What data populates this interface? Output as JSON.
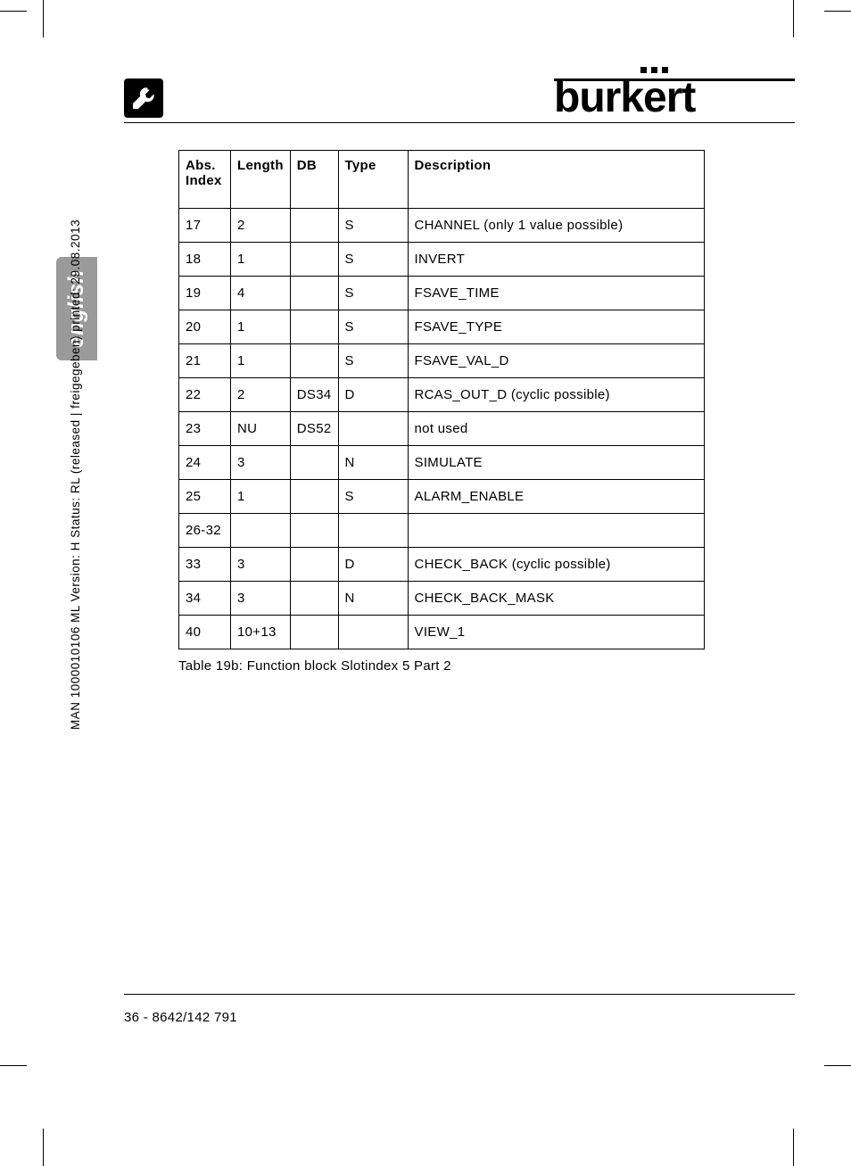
{
  "brand": "burkert",
  "language_tab": "english",
  "vertical_doc_string": "MAN  1000010106  ML  Version: H   Status: RL (released | freigegeben)  printed: 29.08.2013",
  "table": {
    "headers": {
      "abs_index": "Abs. Index",
      "length": "Length",
      "db": "DB",
      "type": "Type",
      "description": "Description"
    },
    "rows": [
      {
        "abs": "17",
        "len": "2",
        "db": "",
        "type": "S",
        "desc": "CHANNEL (only 1 value possible)"
      },
      {
        "abs": "18",
        "len": "1",
        "db": "",
        "type": "S",
        "desc": "INVERT"
      },
      {
        "abs": "19",
        "len": "4",
        "db": "",
        "type": "S",
        "desc": "FSAVE_TIME"
      },
      {
        "abs": "20",
        "len": "1",
        "db": "",
        "type": "S",
        "desc": "FSAVE_TYPE"
      },
      {
        "abs": "21",
        "len": "1",
        "db": "",
        "type": "S",
        "desc": "FSAVE_VAL_D"
      },
      {
        "abs": "22",
        "len": "2",
        "db": "DS34",
        "type": "D",
        "desc": "RCAS_OUT_D (cyclic possible)"
      },
      {
        "abs": "23",
        "len": "NU",
        "db": "DS52",
        "type": "",
        "desc": "not used"
      },
      {
        "abs": "24",
        "len": "3",
        "db": "",
        "type": "N",
        "desc": "SIMULATE"
      },
      {
        "abs": "25",
        "len": "1",
        "db": "",
        "type": "S",
        "desc": "ALARM_ENABLE"
      },
      {
        "abs": "26-32",
        "len": "",
        "db": "",
        "type": "",
        "desc": ""
      },
      {
        "abs": "33",
        "len": "3",
        "db": "",
        "type": "D",
        "desc": "CHECK_BACK (cyclic possible)"
      },
      {
        "abs": "34",
        "len": "3",
        "db": "",
        "type": "N",
        "desc": "CHECK_BACK_MASK"
      },
      {
        "abs": "40",
        "len": "10+13",
        "db": "",
        "type": "",
        "desc": "VIEW_1"
      }
    ]
  },
  "caption": "Table 19b: Function block Slotindex 5 Part 2",
  "footer": "36  -  8642/142 791"
}
